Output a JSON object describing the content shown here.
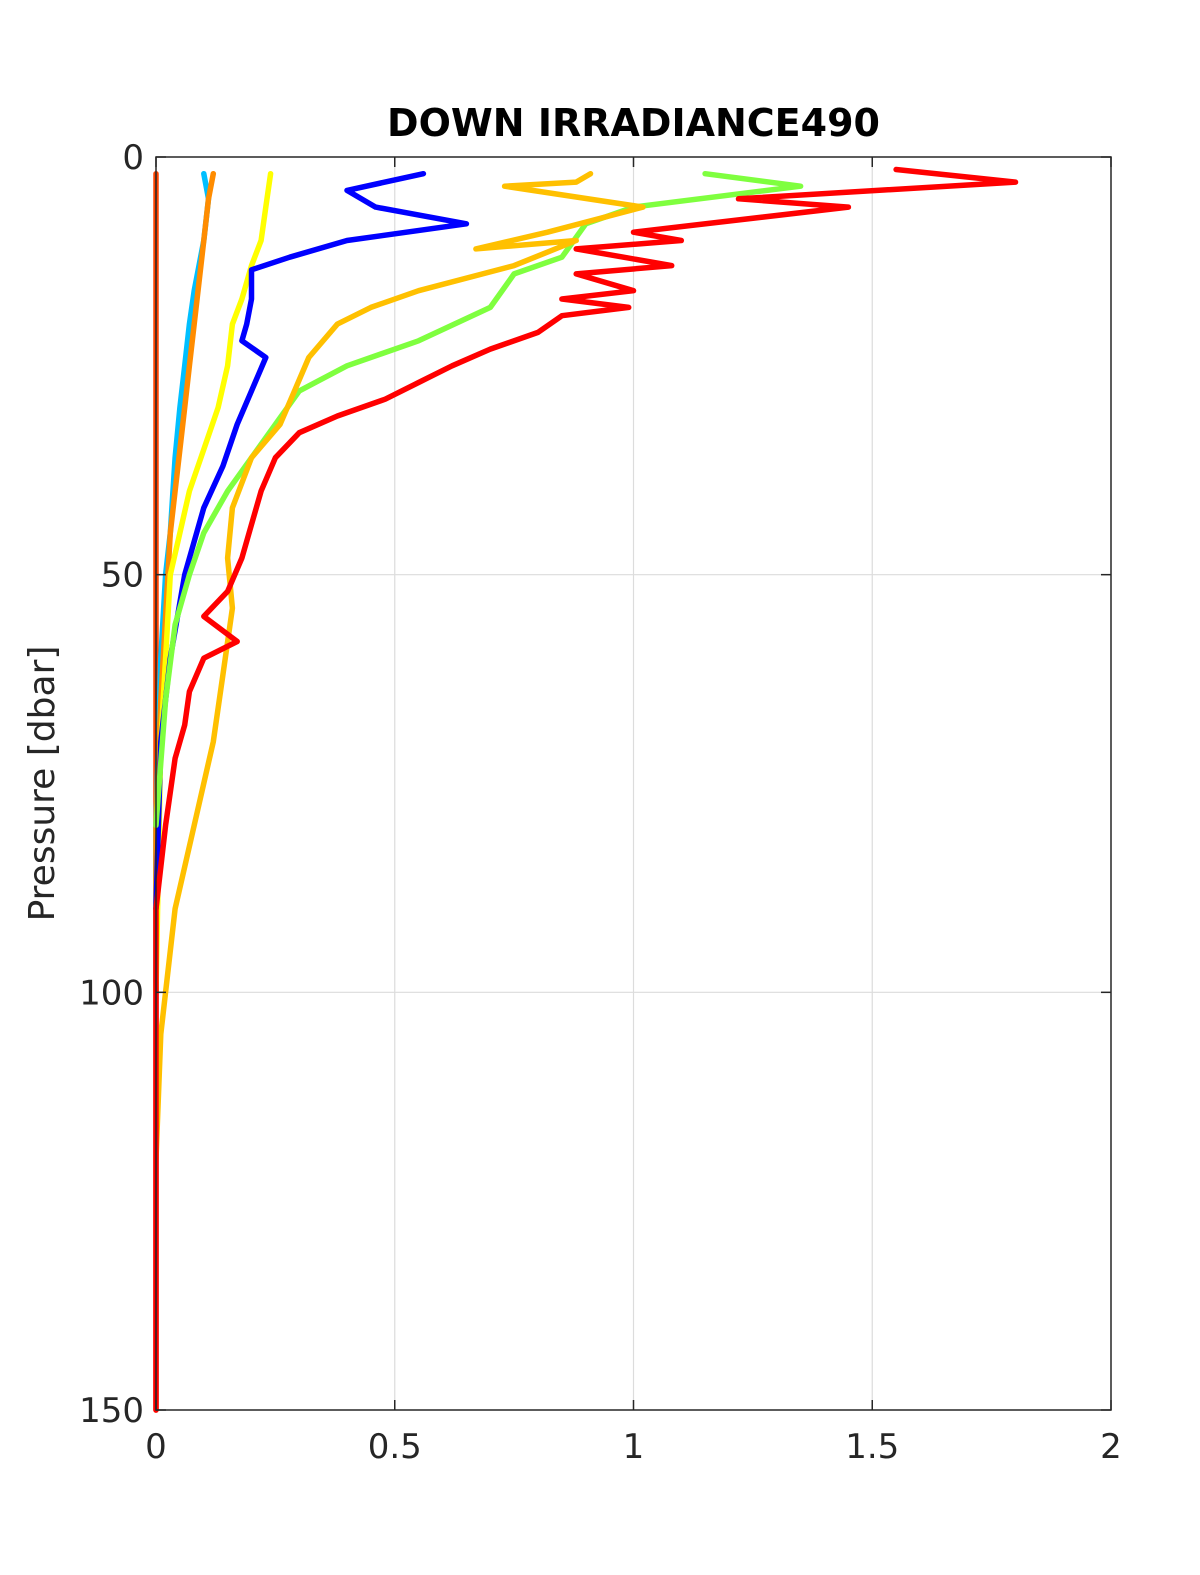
{
  "chart_data": {
    "type": "line",
    "title": "DOWN IRRADIANCE490",
    "xlabel": "",
    "ylabel": "Pressure [dbar]",
    "xlim": [
      0,
      2
    ],
    "ylim": [
      0,
      150
    ],
    "y_reversed": true,
    "grid": true,
    "x_ticks": [
      "0",
      "0.5",
      "1",
      "1.5",
      "2"
    ],
    "y_ticks": [
      "0",
      "50",
      "100",
      "150"
    ],
    "x_tick_values": [
      0,
      0.5,
      1,
      1.5,
      2
    ],
    "y_tick_values": [
      0,
      50,
      100,
      150
    ],
    "series": [
      {
        "color": "#ff4500",
        "points": [
          [
            0.0,
            2
          ],
          [
            0.0,
            20
          ],
          [
            0.0,
            60
          ],
          [
            0.0,
            100
          ],
          [
            0.0,
            150
          ]
        ]
      },
      {
        "color": "#00bfff",
        "points": [
          [
            0.1,
            2
          ],
          [
            0.11,
            5
          ],
          [
            0.1,
            10
          ],
          [
            0.09,
            13
          ],
          [
            0.08,
            16
          ],
          [
            0.07,
            20
          ],
          [
            0.06,
            25
          ],
          [
            0.05,
            30
          ],
          [
            0.04,
            36
          ],
          [
            0.03,
            45
          ],
          [
            0.02,
            50
          ],
          [
            0.01,
            60
          ],
          [
            0.0,
            80
          ],
          [
            0.0,
            100
          ]
        ]
      },
      {
        "color": "#ff8c00",
        "points": [
          [
            0.12,
            2
          ],
          [
            0.11,
            5
          ],
          [
            0.1,
            10
          ],
          [
            0.09,
            15
          ],
          [
            0.08,
            20
          ],
          [
            0.07,
            25
          ],
          [
            0.06,
            30
          ],
          [
            0.05,
            35
          ],
          [
            0.04,
            40
          ],
          [
            0.03,
            45
          ],
          [
            0.02,
            55
          ],
          [
            0.01,
            65
          ],
          [
            0.0,
            80
          ],
          [
            0.0,
            100
          ]
        ]
      },
      {
        "color": "#ffff00",
        "points": [
          [
            0.24,
            2
          ],
          [
            0.23,
            6
          ],
          [
            0.22,
            10
          ],
          [
            0.2,
            13
          ],
          [
            0.18,
            17
          ],
          [
            0.16,
            20
          ],
          [
            0.15,
            25
          ],
          [
            0.13,
            30
          ],
          [
            0.1,
            35
          ],
          [
            0.07,
            40
          ],
          [
            0.05,
            45
          ],
          [
            0.03,
            50
          ],
          [
            0.02,
            60
          ],
          [
            0.01,
            70
          ],
          [
            0.0,
            100
          ]
        ]
      },
      {
        "color": "#0000ff",
        "points": [
          [
            0.56,
            2
          ],
          [
            0.4,
            4
          ],
          [
            0.46,
            6
          ],
          [
            0.65,
            8
          ],
          [
            0.4,
            10
          ],
          [
            0.28,
            12
          ],
          [
            0.2,
            13.5
          ],
          [
            0.2,
            17
          ],
          [
            0.19,
            20
          ],
          [
            0.18,
            22
          ],
          [
            0.23,
            24
          ],
          [
            0.2,
            28
          ],
          [
            0.17,
            32
          ],
          [
            0.14,
            37
          ],
          [
            0.1,
            42
          ],
          [
            0.06,
            50
          ],
          [
            0.03,
            60
          ],
          [
            0.01,
            70
          ],
          [
            0.0,
            90
          ]
        ]
      },
      {
        "color": "#7fff3f",
        "points": [
          [
            1.15,
            2
          ],
          [
            1.35,
            3.5
          ],
          [
            1.0,
            6
          ],
          [
            0.9,
            8
          ],
          [
            0.85,
            12
          ],
          [
            0.75,
            14
          ],
          [
            0.7,
            18
          ],
          [
            0.55,
            22
          ],
          [
            0.4,
            25
          ],
          [
            0.3,
            28
          ],
          [
            0.25,
            32
          ],
          [
            0.2,
            36
          ],
          [
            0.15,
            40
          ],
          [
            0.1,
            45
          ],
          [
            0.07,
            50
          ],
          [
            0.04,
            56
          ],
          [
            0.02,
            65
          ],
          [
            0.0,
            80
          ]
        ]
      },
      {
        "color": "#ffc000",
        "points": [
          [
            0.91,
            2
          ],
          [
            0.88,
            3
          ],
          [
            0.73,
            3.5
          ],
          [
            1.02,
            6
          ],
          [
            0.82,
            9
          ],
          [
            0.67,
            11
          ],
          [
            0.88,
            10
          ],
          [
            0.75,
            13
          ],
          [
            0.55,
            16
          ],
          [
            0.45,
            18
          ],
          [
            0.38,
            20
          ],
          [
            0.32,
            24
          ],
          [
            0.29,
            28
          ],
          [
            0.26,
            32
          ],
          [
            0.2,
            36
          ],
          [
            0.16,
            42
          ],
          [
            0.15,
            48
          ],
          [
            0.16,
            54
          ],
          [
            0.14,
            62
          ],
          [
            0.12,
            70
          ],
          [
            0.08,
            80
          ],
          [
            0.04,
            90
          ],
          [
            0.01,
            105
          ],
          [
            0.0,
            120
          ]
        ]
      },
      {
        "color": "#ff0000",
        "points": [
          [
            1.55,
            1.5
          ],
          [
            1.8,
            3
          ],
          [
            1.22,
            5
          ],
          [
            1.45,
            6
          ],
          [
            1.0,
            9
          ],
          [
            1.1,
            10
          ],
          [
            0.88,
            11
          ],
          [
            1.08,
            13
          ],
          [
            0.88,
            14
          ],
          [
            1.0,
            16
          ],
          [
            0.85,
            17
          ],
          [
            0.99,
            18
          ],
          [
            0.85,
            19
          ],
          [
            0.8,
            21
          ],
          [
            0.7,
            23
          ],
          [
            0.62,
            25
          ],
          [
            0.55,
            27
          ],
          [
            0.48,
            29
          ],
          [
            0.38,
            31
          ],
          [
            0.3,
            33
          ],
          [
            0.25,
            36
          ],
          [
            0.22,
            40
          ],
          [
            0.2,
            44
          ],
          [
            0.18,
            48
          ],
          [
            0.15,
            52
          ],
          [
            0.1,
            55
          ],
          [
            0.17,
            58
          ],
          [
            0.1,
            60
          ],
          [
            0.07,
            64
          ],
          [
            0.06,
            68
          ],
          [
            0.04,
            72
          ],
          [
            0.02,
            80
          ],
          [
            0.0,
            90
          ],
          [
            0.0,
            150
          ]
        ]
      }
    ]
  }
}
